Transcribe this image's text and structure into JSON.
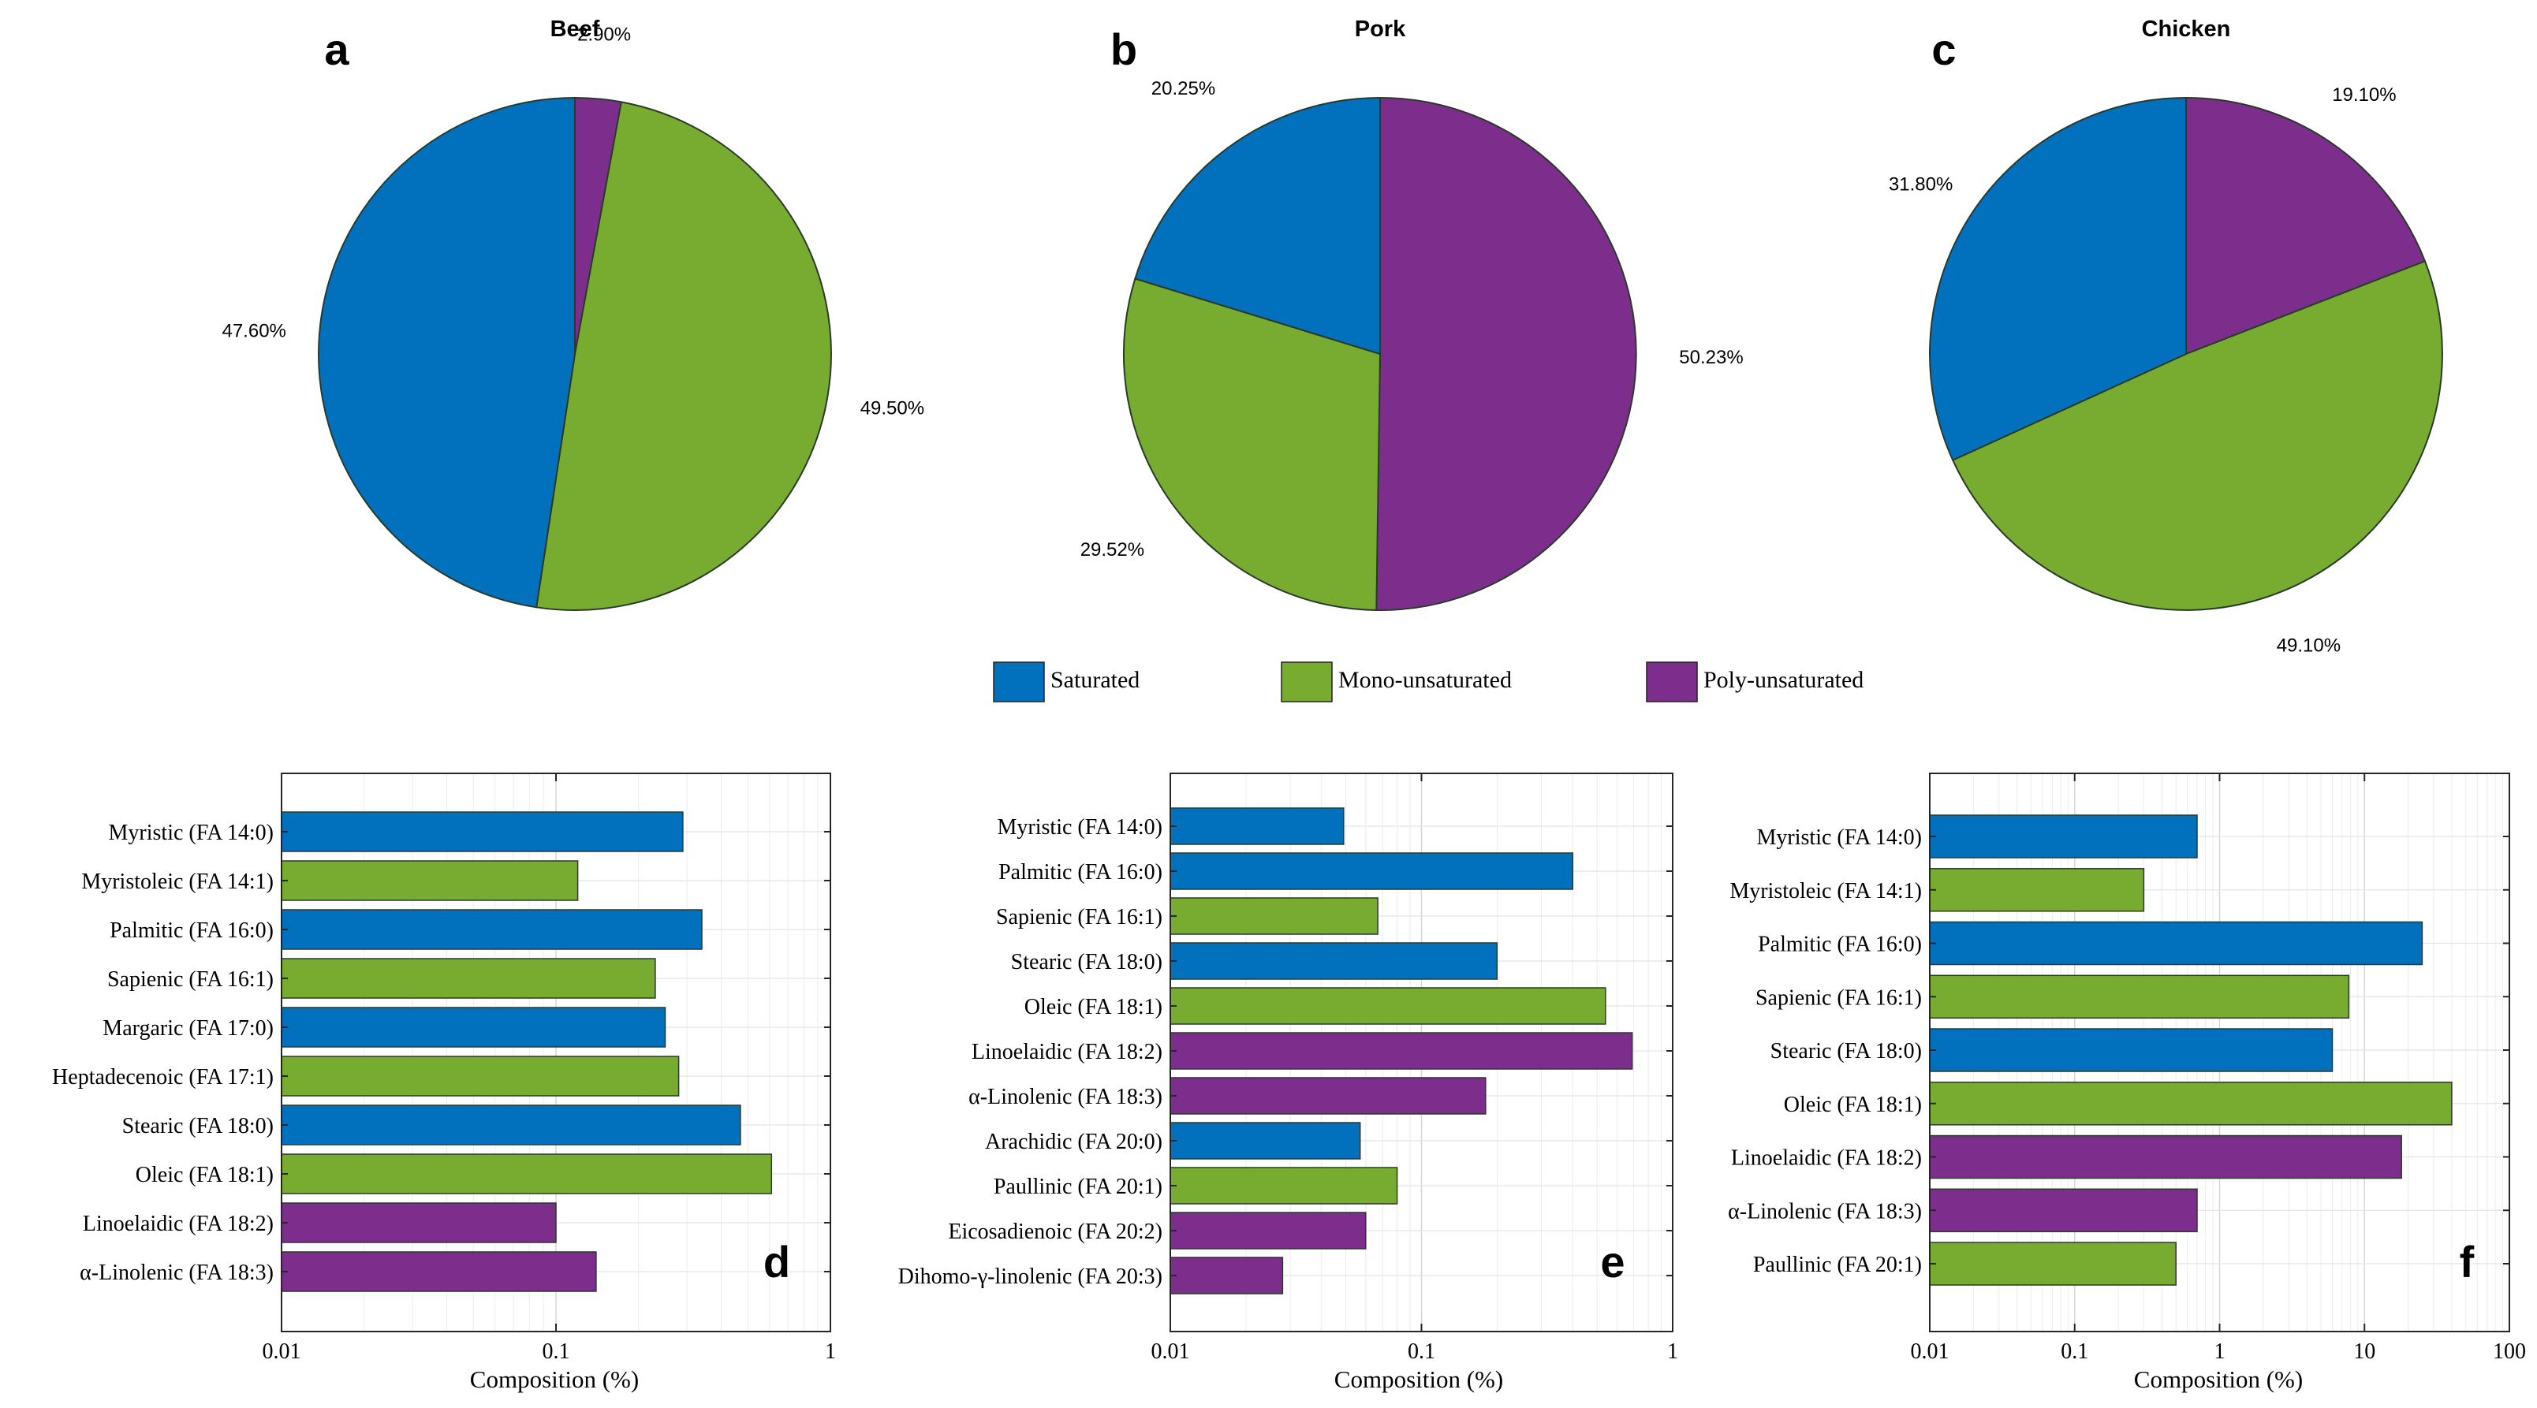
{
  "colors": {
    "saturated": "#0171bd",
    "mono": "#77ac31",
    "poly": "#7d2e8d",
    "edge": "#2a3a2a"
  },
  "legend": {
    "saturated": "Saturated",
    "mono": "Mono-unsaturated",
    "poly": "Poly-unsaturated"
  },
  "chart_data": [
    {
      "type": "pie",
      "panel": "a",
      "title": "Beef",
      "slices": [
        {
          "name": "Poly-unsaturated",
          "group": "poly",
          "value": 2.9,
          "label": "2.90%"
        },
        {
          "name": "Mono-unsaturated",
          "group": "mono",
          "value": 49.5,
          "label": "49.50%"
        },
        {
          "name": "Saturated",
          "group": "saturated",
          "value": 47.6,
          "label": "47.60%"
        }
      ]
    },
    {
      "type": "pie",
      "panel": "b",
      "title": "Pork",
      "slices": [
        {
          "name": "Poly-unsaturated",
          "group": "poly",
          "value": 50.23,
          "label": "50.23%"
        },
        {
          "name": "Mono-unsaturated",
          "group": "mono",
          "value": 29.52,
          "label": "29.52%"
        },
        {
          "name": "Saturated",
          "group": "saturated",
          "value": 20.25,
          "label": "20.25%"
        }
      ]
    },
    {
      "type": "pie",
      "panel": "c",
      "title": "Chicken",
      "slices": [
        {
          "name": "Poly-unsaturated",
          "group": "poly",
          "value": 19.1,
          "label": "19.10%"
        },
        {
          "name": "Mono-unsaturated",
          "group": "mono",
          "value": 49.1,
          "label": "49.10%"
        },
        {
          "name": "Saturated",
          "group": "saturated",
          "value": 31.8,
          "label": "31.80%"
        }
      ]
    },
    {
      "type": "bar",
      "orientation": "horizontal",
      "panel": "d",
      "xscale": "log",
      "xlim": [
        0.01,
        1
      ],
      "xticks": [
        {
          "v": 0.01,
          "label": "0.01"
        },
        {
          "v": 0.1,
          "label": "0.1"
        },
        {
          "v": 1,
          "label": "1"
        }
      ],
      "xlabel": "Composition (%)",
      "categories": [
        "Myristic (FA 14:0)",
        "Myristoleic (FA 14:1)",
        "Palmitic (FA 16:0)",
        "Sapienic (FA 16:1)",
        "Margaric (FA 17:0)",
        "Heptadecenoic (FA 17:1)",
        "Stearic (FA 18:0)",
        "Oleic (FA 18:1)",
        "Linoelaidic (FA 18:2)",
        "α-Linolenic (FA 18:3)"
      ],
      "values": [
        0.29,
        0.12,
        0.34,
        0.23,
        0.25,
        0.28,
        0.47,
        0.61,
        0.1,
        0.14
      ],
      "groups": [
        "saturated",
        "mono",
        "saturated",
        "mono",
        "saturated",
        "mono",
        "saturated",
        "mono",
        "poly",
        "poly"
      ]
    },
    {
      "type": "bar",
      "orientation": "horizontal",
      "panel": "e",
      "xscale": "log",
      "xlim": [
        0.01,
        1
      ],
      "xticks": [
        {
          "v": 0.01,
          "label": "0.01"
        },
        {
          "v": 0.1,
          "label": "0.1"
        },
        {
          "v": 1,
          "label": "1"
        }
      ],
      "xlabel": "Composition (%)",
      "categories": [
        "Myristic (FA 14:0)",
        "Palmitic (FA 16:0)",
        "Sapienic (FA 16:1)",
        "Stearic (FA 18:0)",
        "Oleic (FA 18:1)",
        "Linoelaidic (FA 18:2)",
        "α-Linolenic (FA 18:3)",
        "Arachidic (FA 20:0)",
        "Paullinic (FA 20:1)",
        "Eicosadienoic (FA 20:2)",
        "Dihomo-γ-linolenic (FA 20:3)"
      ],
      "values": [
        0.049,
        0.4,
        0.067,
        0.2,
        0.54,
        0.69,
        0.18,
        0.057,
        0.08,
        0.06,
        0.028
      ],
      "groups": [
        "saturated",
        "saturated",
        "mono",
        "saturated",
        "mono",
        "poly",
        "poly",
        "saturated",
        "mono",
        "poly",
        "poly"
      ]
    },
    {
      "type": "bar",
      "orientation": "horizontal",
      "panel": "f",
      "xscale": "log",
      "xlim": [
        0.01,
        100
      ],
      "xticks": [
        {
          "v": 0.01,
          "label": "0.01"
        },
        {
          "v": 0.1,
          "label": "0.1"
        },
        {
          "v": 1,
          "label": "1"
        },
        {
          "v": 10,
          "label": "10"
        },
        {
          "v": 100,
          "label": "100"
        }
      ],
      "xlabel": "Composition (%)",
      "categories": [
        "Myristic (FA 14:0)",
        "Myristoleic (FA 14:1)",
        "Palmitic (FA 16:0)",
        "Sapienic (FA 16:1)",
        "Stearic (FA 18:0)",
        "Oleic (FA 18:1)",
        "Linoelaidic (FA 18:2)",
        "α-Linolenic (FA 18:3)",
        "Paullinic (FA 20:1)"
      ],
      "values": [
        0.7,
        0.3,
        25,
        7.8,
        6.0,
        40,
        18,
        0.7,
        0.5
      ],
      "groups": [
        "saturated",
        "mono",
        "saturated",
        "mono",
        "saturated",
        "mono",
        "poly",
        "poly",
        "mono"
      ]
    }
  ]
}
